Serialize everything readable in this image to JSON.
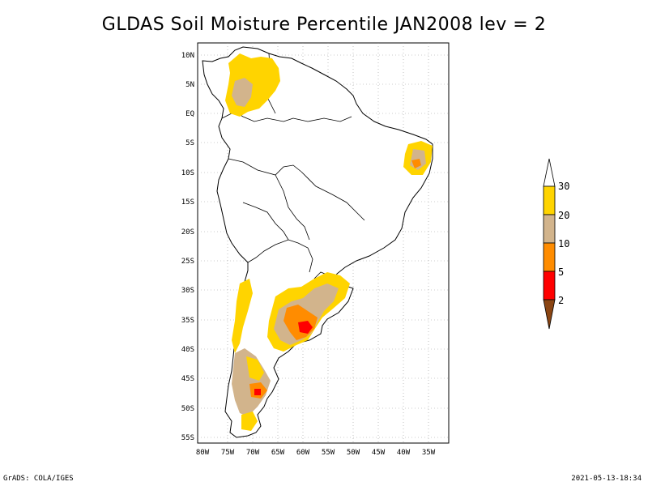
{
  "title": "GLDAS Soil Moisture Percentile JAN2008 lev = 2",
  "footer": {
    "left": "GrADS: COLA/IGES",
    "right": "2021-05-13-18:34"
  },
  "map": {
    "lon_labels": [
      "80W",
      "75W",
      "70W",
      "65W",
      "60W",
      "55W",
      "50W",
      "45W",
      "40W",
      "35W"
    ],
    "lat_labels": [
      "10N",
      "5N",
      "EQ",
      "5S",
      "10S",
      "15S",
      "20S",
      "25S",
      "30S",
      "35S",
      "40S",
      "45S",
      "50S",
      "55S"
    ],
    "grid": true
  },
  "legend": {
    "ticks": [
      "30",
      "20",
      "10",
      "5",
      "2"
    ],
    "bins": [
      {
        "range": ">30",
        "color": "#ffffff"
      },
      {
        "range": "20-30",
        "color": "#ffd400"
      },
      {
        "range": "10-20",
        "color": "#d2b48c"
      },
      {
        "range": "5-10",
        "color": "#ff8c00"
      },
      {
        "range": "2-5",
        "color": "#ff0000"
      },
      {
        "range": "<2",
        "color": "#8b4513"
      }
    ]
  }
}
